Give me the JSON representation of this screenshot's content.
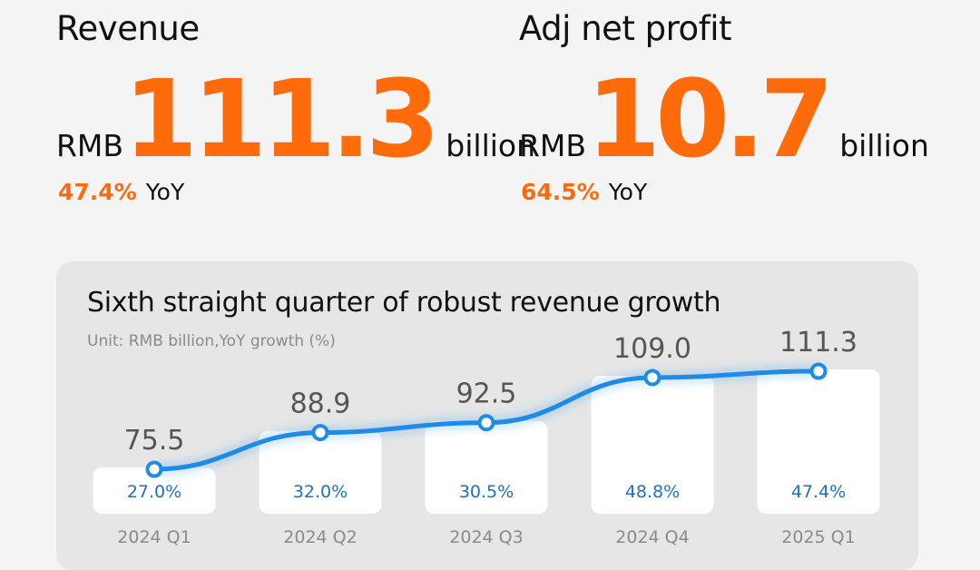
{
  "kpis": {
    "revenue": {
      "label": "Revenue",
      "prefix": "RMB",
      "value": "111.3",
      "unit": "billion",
      "yoy_pct": "47.4%",
      "yoy_label": "YoY"
    },
    "net_profit": {
      "label": "Adj net profit",
      "prefix": "RMB",
      "value": "10.7",
      "unit": "billion",
      "yoy_pct": "64.5%",
      "yoy_label": "YoY"
    }
  },
  "chart_panel": {
    "title": "Sixth straight quarter of robust revenue growth",
    "unit": "Unit: RMB billion,YoY growth (%)"
  },
  "chart_data": {
    "type": "bar",
    "title": "Sixth straight quarter of robust revenue growth",
    "categories": [
      "2024 Q1",
      "2024 Q2",
      "2024 Q3",
      "2024 Q4",
      "2025 Q1"
    ],
    "series": [
      {
        "name": "Revenue (RMB billion)",
        "values": [
          75.5,
          88.9,
          92.5,
          109.0,
          111.3
        ],
        "labels": [
          "75.5",
          "88.9",
          "92.5",
          "109.0",
          "111.3"
        ]
      },
      {
        "name": "YoY growth (%)",
        "values": [
          27.0,
          32.0,
          30.5,
          48.8,
          47.4
        ],
        "labels": [
          "27.0%",
          "32.0%",
          "30.5%",
          "48.8%",
          "47.4%"
        ]
      }
    ],
    "colors": {
      "accent": "#ff6a0a",
      "line": "#1e8be8",
      "growth_text": "#1e6fc2",
      "bar": "#ffffff",
      "label": "#555555",
      "tick": "#8a8a8a"
    }
  }
}
